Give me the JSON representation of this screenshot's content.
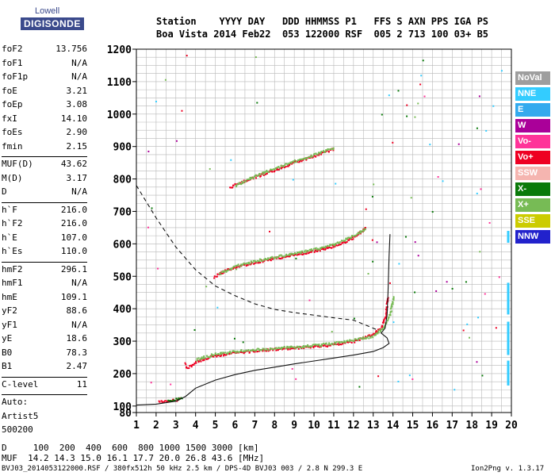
{
  "logo": {
    "top": "Lowell",
    "bottom": "DIGISONDE"
  },
  "header": {
    "line1": "Station    YYYY DAY   DDD HHMMSS P1   FFS S AXN PPS IGA PS",
    "line2": "Boa Vista 2014 Feb22  053 122000 RSF  005 2 713 100 03+ B5"
  },
  "params": [
    {
      "k": "foF2",
      "v": "13.756"
    },
    {
      "k": "foF1",
      "v": "N/A"
    },
    {
      "k": "foF1p",
      "v": "N/A"
    },
    {
      "k": "foE",
      "v": "3.21"
    },
    {
      "k": "foEp",
      "v": "3.08"
    },
    {
      "k": "fxI",
      "v": "14.10"
    },
    {
      "k": "foEs",
      "v": "2.90"
    },
    {
      "k": "fmin",
      "v": "2.15"
    },
    {
      "sep": true
    },
    {
      "k": "MUF(D)",
      "v": "43.62"
    },
    {
      "k": "M(D)",
      "v": "3.17"
    },
    {
      "k": "D",
      "v": "N/A"
    },
    {
      "sep": true
    },
    {
      "k": "h`F",
      "v": "216.0"
    },
    {
      "k": "h`F2",
      "v": "216.0"
    },
    {
      "k": "h`E",
      "v": "107.0"
    },
    {
      "k": "h`Es",
      "v": "110.0"
    },
    {
      "sep": true
    },
    {
      "k": "hmF2",
      "v": "296.1"
    },
    {
      "k": "hmF1",
      "v": "N/A"
    },
    {
      "k": "hmE",
      "v": "109.1"
    },
    {
      "k": "yF2",
      "v": "88.6"
    },
    {
      "k": "yF1",
      "v": "N/A"
    },
    {
      "k": "yE",
      "v": "18.6"
    },
    {
      "k": "B0",
      "v": "78.3"
    },
    {
      "k": "B1",
      "v": "2.47"
    },
    {
      "sep": true
    },
    {
      "k": "C-level",
      "v": "11"
    },
    {
      "sep": true
    },
    {
      "k": "Auto:",
      "v": ""
    },
    {
      "k": "Artist5",
      "v": ""
    },
    {
      "k": "500200",
      "v": ""
    }
  ],
  "legend": [
    {
      "label": "NoVal",
      "color": "#9e9e9e"
    },
    {
      "label": "NNE",
      "color": "#33ccff"
    },
    {
      "label": "E",
      "color": "#33aaee"
    },
    {
      "label": "W",
      "color": "#aa0099"
    },
    {
      "label": "Vo-",
      "color": "#ff3399"
    },
    {
      "label": "Vo+",
      "color": "#ee0022"
    },
    {
      "label": "SSW",
      "color": "#f5b5b0"
    },
    {
      "label": "X-",
      "color": "#0a7a0a"
    },
    {
      "label": "X+",
      "color": "#77bb55"
    },
    {
      "label": "SSE",
      "color": "#cccc00"
    },
    {
      "label": "NNW",
      "color": "#2222cc"
    }
  ],
  "bottom": {
    "d_line": "D     100  200  400  600  800 1000 1500 3000 [km]",
    "muf_line": "MUF  14.2 14.3 15.0 16.1 17.7 20.0 26.8 43.6 [MHz]"
  },
  "footer": {
    "left": "BVJ03_2014053122000.RSF / 380fx512h 50 kHz 2.5 km / DPS-4D BVJ03 003 / 2.8 N 299.3 E",
    "right": "Ion2Png v. 1.3.17"
  },
  "chart_data": {
    "type": "scatter",
    "xlabel": "",
    "ylabel": "",
    "xlim": [
      1,
      20
    ],
    "ylim": [
      80,
      1200
    ],
    "x_ticks": [
      1,
      2,
      3,
      4,
      5,
      6,
      7,
      8,
      9,
      10,
      11,
      12,
      13,
      14,
      15,
      16,
      17,
      18,
      19,
      20
    ],
    "y_ticks": [
      80,
      100,
      200,
      300,
      400,
      500,
      600,
      700,
      800,
      900,
      1000,
      1100,
      1200
    ],
    "grid": true,
    "series": [
      {
        "mode": "Vo+",
        "color": "#ee0022",
        "points": [
          [
            3.45,
            232
          ],
          [
            3.5,
            220
          ],
          [
            3.7,
            225
          ],
          [
            4,
            238
          ],
          [
            4.5,
            250
          ],
          [
            5,
            258
          ],
          [
            6,
            266
          ],
          [
            7,
            272
          ],
          [
            8,
            277
          ],
          [
            9,
            281
          ],
          [
            10,
            286
          ],
          [
            11,
            291
          ],
          [
            12,
            302
          ],
          [
            12.5,
            312
          ],
          [
            13,
            325
          ],
          [
            13.4,
            345
          ],
          [
            13.6,
            380
          ],
          [
            13.7,
            440
          ]
        ]
      },
      {
        "mode": "X+",
        "color": "#77bb55",
        "points": [
          [
            4,
            245
          ],
          [
            5,
            263
          ],
          [
            6,
            270
          ],
          [
            7,
            276
          ],
          [
            8,
            280
          ],
          [
            9,
            284
          ],
          [
            10,
            289
          ],
          [
            11,
            295
          ],
          [
            12,
            306
          ],
          [
            13,
            318
          ],
          [
            13.5,
            345
          ],
          [
            13.8,
            380
          ],
          [
            14,
            440
          ]
        ]
      },
      {
        "mode": "Vo+",
        "color": "#ee0022",
        "points": [
          [
            4.9,
            500
          ],
          [
            5.5,
            520
          ],
          [
            6,
            530
          ],
          [
            7,
            545
          ],
          [
            8,
            557
          ],
          [
            9,
            568
          ],
          [
            10,
            580
          ],
          [
            11,
            595
          ],
          [
            11.5,
            608
          ],
          [
            12,
            622
          ],
          [
            12.4,
            640
          ],
          [
            12.6,
            655
          ]
        ]
      },
      {
        "mode": "X+",
        "color": "#77bb55",
        "points": [
          [
            5.2,
            510
          ],
          [
            6,
            533
          ],
          [
            7,
            549
          ],
          [
            8,
            561
          ],
          [
            9,
            572
          ],
          [
            10,
            585
          ],
          [
            11,
            600
          ],
          [
            12,
            628
          ],
          [
            12.6,
            650
          ]
        ]
      },
      {
        "mode": "Vo+",
        "color": "#ee0022",
        "points": [
          [
            5.7,
            775
          ],
          [
            6,
            785
          ],
          [
            7,
            808
          ],
          [
            8,
            830
          ],
          [
            9,
            853
          ],
          [
            10,
            873
          ],
          [
            10.6,
            887
          ],
          [
            11,
            895
          ]
        ]
      },
      {
        "mode": "X+",
        "color": "#77bb55",
        "points": [
          [
            6,
            782
          ],
          [
            7,
            812
          ],
          [
            8,
            834
          ],
          [
            9,
            857
          ],
          [
            10,
            877
          ],
          [
            11,
            898
          ]
        ]
      },
      {
        "mode": "Vo+",
        "color": "#ee0022",
        "points": [
          [
            2.1,
            115
          ],
          [
            2.5,
            117
          ],
          [
            3,
            120
          ],
          [
            3.2,
            128
          ]
        ]
      },
      {
        "mode": "X-",
        "color": "#0a7a0a",
        "points": [
          [
            2.6,
            118
          ],
          [
            3,
            123
          ],
          [
            3.3,
            130
          ]
        ]
      }
    ],
    "profile_solid": [
      [
        1,
        103
      ],
      [
        2,
        106
      ],
      [
        3,
        115
      ],
      [
        3.5,
        130
      ],
      [
        4,
        155
      ],
      [
        5,
        180
      ],
      [
        6,
        197
      ],
      [
        7,
        210
      ],
      [
        8,
        220
      ],
      [
        9,
        230
      ],
      [
        10,
        239
      ],
      [
        11,
        248
      ],
      [
        12,
        257
      ],
      [
        13,
        268
      ],
      [
        13.5,
        280
      ],
      [
        13.8,
        293
      ],
      [
        13.7,
        310
      ],
      [
        13.4,
        325
      ],
      [
        13.6,
        340
      ],
      [
        13.7,
        380
      ],
      [
        13.75,
        450
      ],
      [
        13.8,
        560
      ],
      [
        13.85,
        630
      ]
    ],
    "profile_dashed": [
      [
        1,
        780
      ],
      [
        2,
        680
      ],
      [
        3,
        590
      ],
      [
        4,
        520
      ],
      [
        5,
        470
      ],
      [
        6,
        440
      ],
      [
        7,
        415
      ],
      [
        8,
        398
      ],
      [
        9,
        388
      ],
      [
        10,
        380
      ],
      [
        11,
        372
      ],
      [
        12,
        365
      ],
      [
        12.6,
        350
      ],
      [
        13,
        340
      ],
      [
        13.2,
        335
      ]
    ]
  }
}
